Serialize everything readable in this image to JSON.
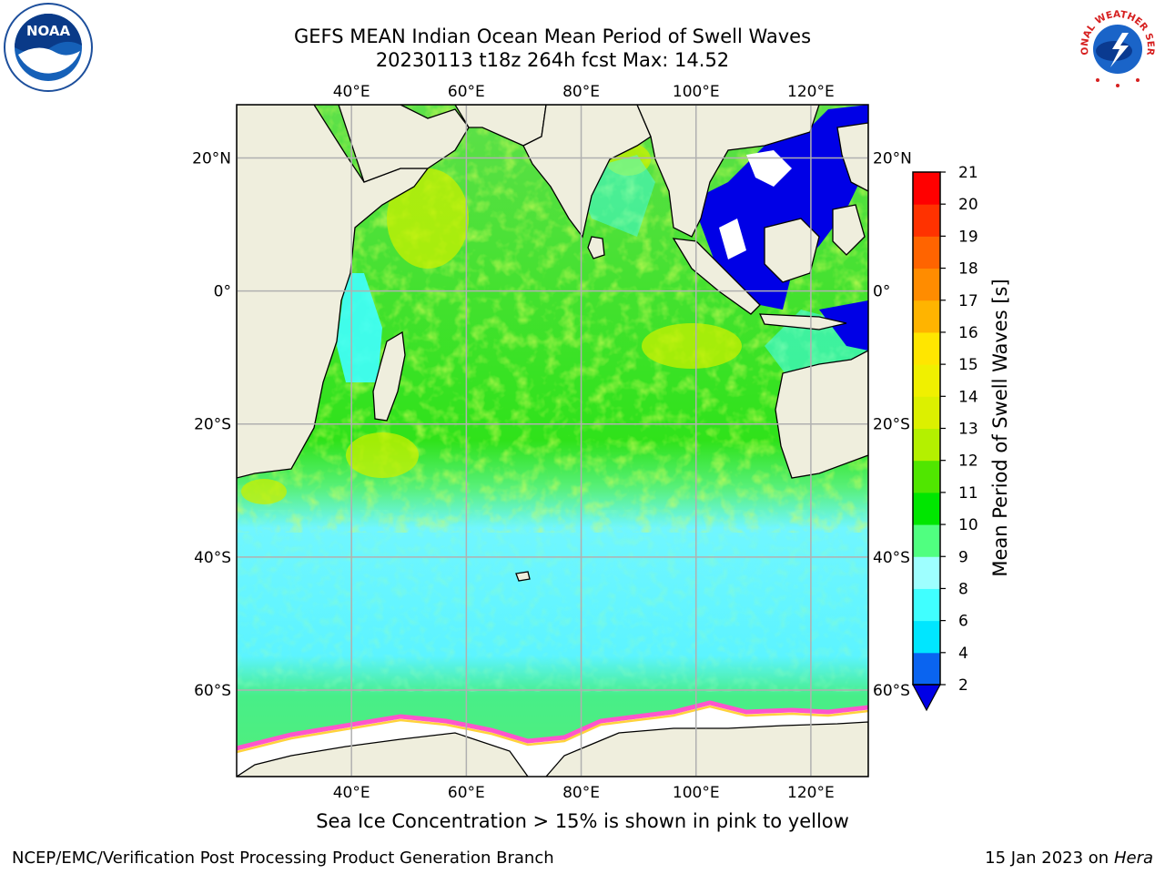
{
  "title_line1": "GEFS MEAN Indian Ocean Mean Period of Swell Waves",
  "title_line2": "20230113 t18z 264h fcst   Max: 14.52",
  "note": "Sea Ice Concentration > 15% is shown in pink to yellow",
  "footer_left": "NCEP/EMC/Verification Post Processing Product Generation Branch",
  "footer_right_prefix": "15 Jan 2023 on ",
  "footer_right_machine": "Hera",
  "map": {
    "lon_range": [
      20,
      130
    ],
    "lat_range": [
      -73,
      28
    ],
    "lon_ticks": [
      {
        "value": 40,
        "label": "40°E"
      },
      {
        "value": 60,
        "label": "60°E"
      },
      {
        "value": 80,
        "label": "80°E"
      },
      {
        "value": 100,
        "label": "100°E"
      },
      {
        "value": 120,
        "label": "120°E"
      }
    ],
    "lat_ticks": [
      {
        "value": 20,
        "label": "20°N"
      },
      {
        "value": 0,
        "label": "0°"
      },
      {
        "value": -20,
        "label": "20°S"
      },
      {
        "value": -40,
        "label": "40°S"
      },
      {
        "value": -60,
        "label": "60°S"
      }
    ],
    "grid": true,
    "land_color": "#efeedd",
    "ocean_base_color": "#2ee000"
  },
  "colorbar": {
    "label": "Mean Period of Swell Waves [s]",
    "levels": [
      2,
      4,
      6,
      8,
      9,
      10,
      11,
      12,
      13,
      14,
      15,
      16,
      17,
      18,
      19,
      20,
      21
    ],
    "colors": [
      "#0a64f0",
      "#00e6ff",
      "#40ffff",
      "#9effff",
      "#50ff80",
      "#00e600",
      "#50e600",
      "#b4f000",
      "#dcf000",
      "#f0f000",
      "#ffe600",
      "#ffb400",
      "#ff8c00",
      "#ff6400",
      "#ff3200",
      "#ff0000"
    ],
    "under_color": "#0000e6"
  },
  "logos": {
    "noaa_text": "NOAA",
    "nws_text": "NATIONAL WEATHER SERVICE"
  }
}
